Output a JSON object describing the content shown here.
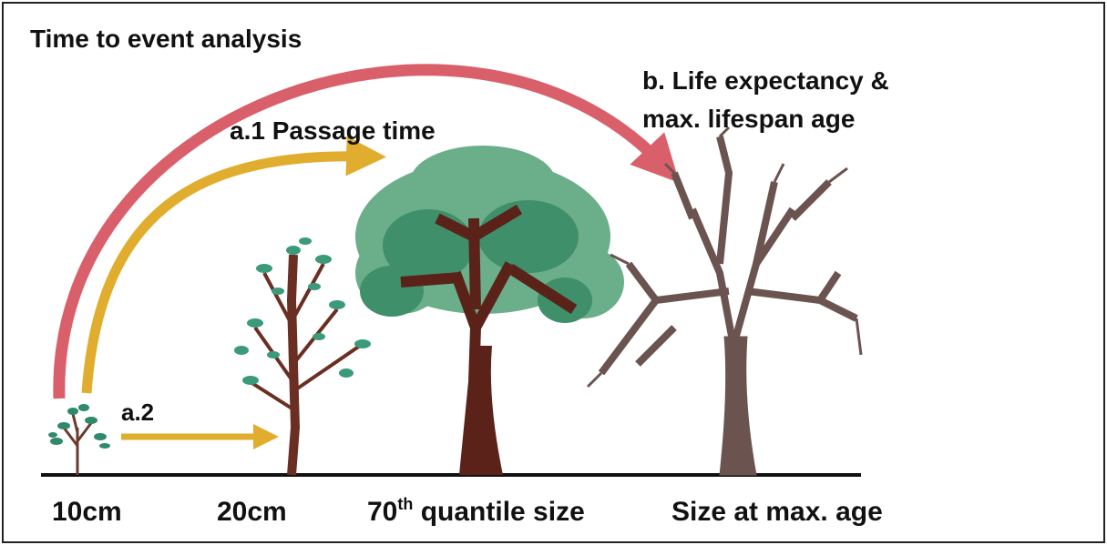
{
  "title": "Time to event analysis",
  "arrows": {
    "a1": "a.1 Passage time",
    "a2": "a.2",
    "b": [
      "b. Life expectancy &",
      "max. lifespan age"
    ]
  },
  "sizes": {
    "first": "10cm",
    "second": "20cm",
    "third": {
      "base": "70",
      "sup": "th",
      "rest": " quantile size"
    },
    "fourth": "Size at max. age"
  }
}
